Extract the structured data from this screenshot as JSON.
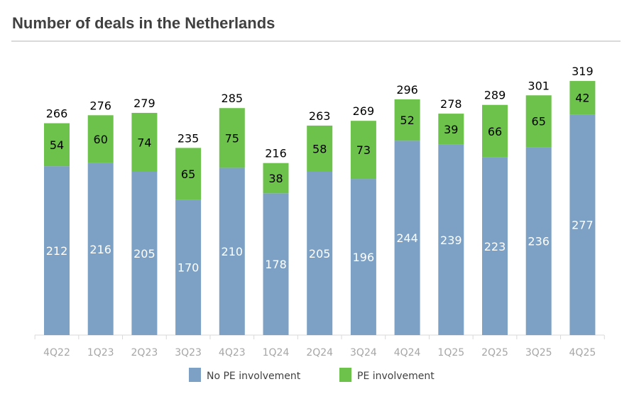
{
  "chart_data": {
    "type": "bar",
    "stacked": true,
    "title": "Number of deals in the Netherlands",
    "categories": [
      "4Q22",
      "1Q23",
      "2Q23",
      "3Q23",
      "4Q23",
      "1Q24",
      "2Q24",
      "3Q24",
      "4Q24",
      "1Q25",
      "2Q25",
      "3Q25",
      "4Q25"
    ],
    "series": [
      {
        "name": "No PE involvement",
        "color": "#7da1c4",
        "values": [
          212,
          216,
          205,
          170,
          210,
          178,
          205,
          196,
          244,
          239,
          223,
          236,
          277
        ]
      },
      {
        "name": "PE involvement",
        "color": "#6cc24a",
        "values": [
          54,
          60,
          74,
          65,
          75,
          38,
          58,
          73,
          52,
          39,
          66,
          65,
          42
        ]
      }
    ],
    "totals": [
      266,
      276,
      279,
      235,
      285,
      216,
      263,
      269,
      296,
      278,
      289,
      301,
      319
    ],
    "ylim": [
      0,
      319
    ],
    "grid": false,
    "legend": "bottom"
  }
}
